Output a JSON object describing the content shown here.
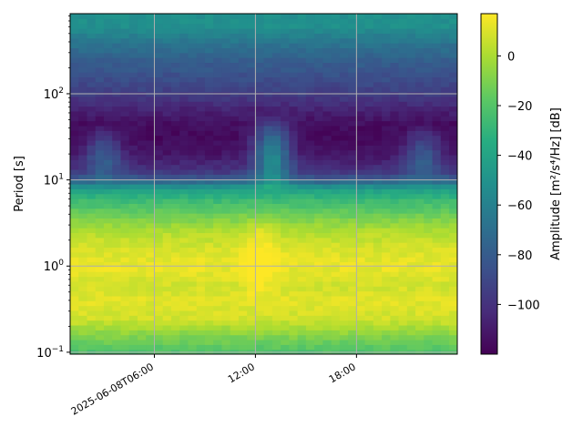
{
  "chart_data": {
    "type": "heatmap",
    "title": "",
    "xlabel": "",
    "ylabel": "Period [s]",
    "yscale": "log",
    "ylim": [
      0.095,
      850
    ],
    "xlim": [
      "2025-06-08T01:00",
      "2025-06-08T23:59"
    ],
    "x_ticks": [
      {
        "value": "2025-06-08T06:00",
        "label": "2025-06-08T06:00"
      },
      {
        "value": "2025-06-08T12:00",
        "label": "12:00"
      },
      {
        "value": "2025-06-08T18:00",
        "label": "18:00"
      }
    ],
    "y_ticks": [
      {
        "value": 0.1,
        "label": "10^-1"
      },
      {
        "value": 1,
        "label": "10^0"
      },
      {
        "value": 10,
        "label": "10^1"
      },
      {
        "value": 100,
        "label": "10^2"
      }
    ],
    "grid": true,
    "colormap": "viridis",
    "colorbar": {
      "label": "Amplitude [m²/s⁴/Hz] [dB]",
      "range": [
        -120,
        17
      ],
      "ticks": [
        0,
        -20,
        -40,
        -60,
        -80,
        -100
      ]
    },
    "periods": [
      0.1,
      0.15,
      0.25,
      0.4,
      0.6,
      1.0,
      1.5,
      2.5,
      4,
      6,
      8,
      10,
      13,
      20,
      30,
      45,
      70,
      100,
      160,
      250,
      400,
      600
    ],
    "profile_db": [
      -22,
      -10,
      8,
      11,
      8,
      13,
      10,
      2,
      -14,
      -28,
      -44,
      -78,
      -100,
      -112,
      -117,
      -115,
      -105,
      -95,
      -86,
      -78,
      -66,
      -52
    ],
    "disturbances": [
      {
        "time": "2025-06-08T03:00",
        "period_range": [
          9,
          45
        ],
        "delta_db": 30
      },
      {
        "time": "2025-06-08T13:00",
        "period_range": [
          7,
          60
        ],
        "delta_db": 55
      },
      {
        "time": "2025-06-08T12:15",
        "period_range": [
          0.3,
          6
        ],
        "delta_db": 10
      },
      {
        "time": "2025-06-08T22:00",
        "period_range": [
          9,
          45
        ],
        "delta_db": 30
      }
    ],
    "time_step_minutes": 30
  }
}
